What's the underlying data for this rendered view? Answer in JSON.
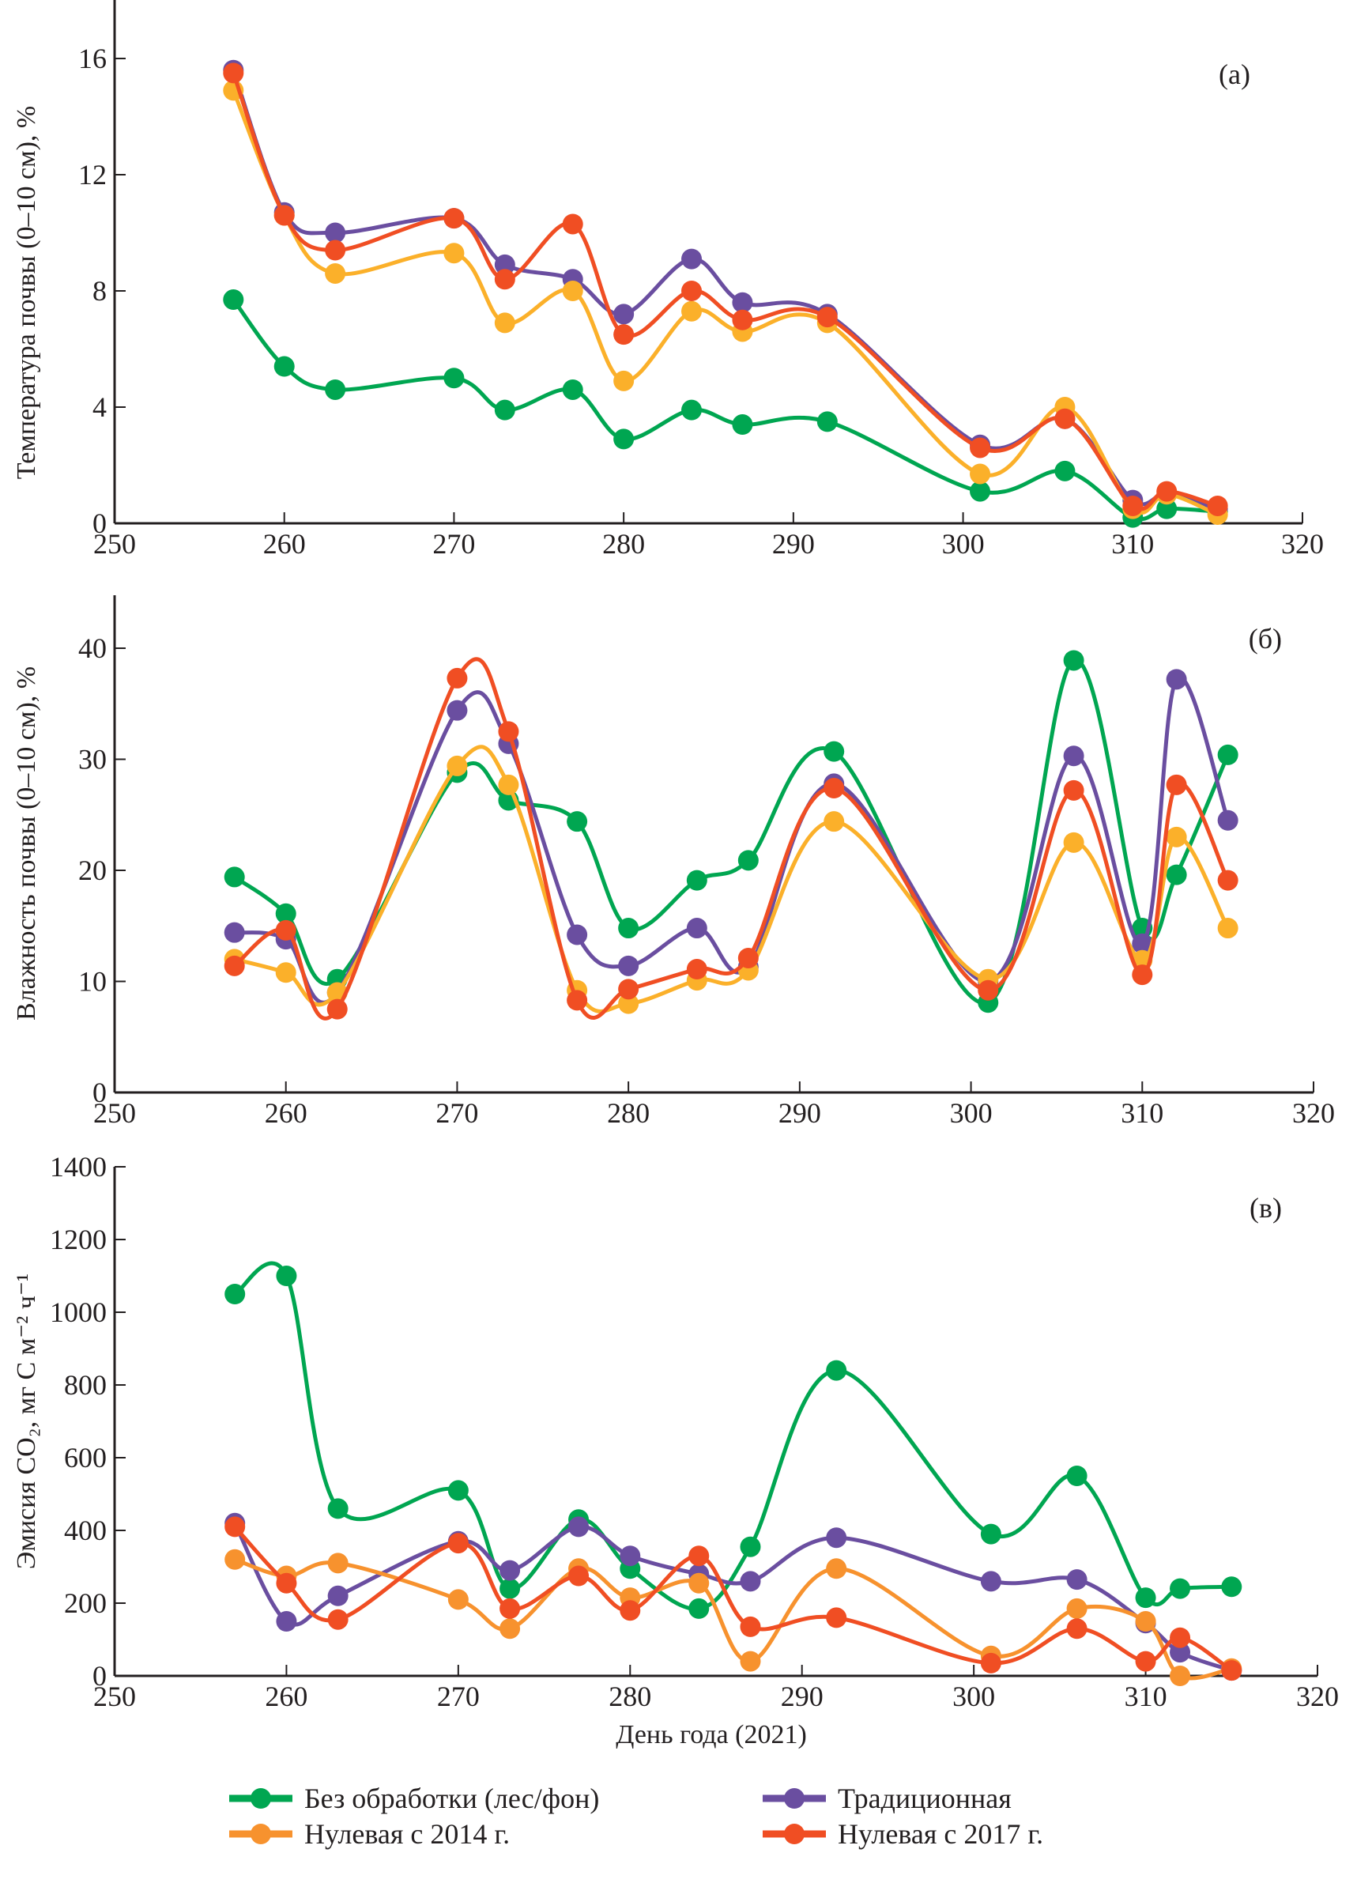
{
  "chart_data": [
    {
      "type": "line",
      "panel_label": "(а)",
      "title": "",
      "xlabel": "",
      "ylabel": "Температура почвы (0–10 см), %",
      "xlim": [
        250,
        320
      ],
      "ylim": [
        0,
        18
      ],
      "xticks": [
        250,
        260,
        270,
        280,
        290,
        300,
        310,
        320
      ],
      "yticks": [
        0,
        4,
        8,
        12,
        16
      ],
      "x": [
        257,
        260,
        263,
        270,
        273,
        277,
        280,
        284,
        287,
        292,
        301,
        306,
        310,
        312,
        315
      ],
      "series": [
        {
          "name": "Без обработки (лес/фон)",
          "color": "#00a651",
          "values": [
            7.7,
            5.4,
            4.6,
            5.0,
            3.9,
            4.6,
            2.9,
            3.9,
            3.4,
            3.5,
            1.1,
            1.8,
            0.2,
            0.5,
            0.4
          ]
        },
        {
          "name": "Традиционная",
          "color": "#6a4ea0",
          "values": [
            15.6,
            10.7,
            10.0,
            10.5,
            8.9,
            8.4,
            7.2,
            9.1,
            7.6,
            7.2,
            2.7,
            3.6,
            0.8,
            1.0,
            0.5
          ]
        },
        {
          "name": "Нулевая с 2014 г.",
          "color": "#fbb02a",
          "values": [
            14.9,
            10.6,
            8.6,
            9.3,
            6.9,
            8.0,
            4.9,
            7.3,
            6.6,
            6.9,
            1.7,
            4.0,
            0.5,
            1.0,
            0.3
          ]
        },
        {
          "name": "Нулевая с 2017 г.",
          "color": "#f04e23",
          "values": [
            15.5,
            10.6,
            9.4,
            10.5,
            8.4,
            10.3,
            6.5,
            8.0,
            7.0,
            7.1,
            2.6,
            3.6,
            0.6,
            1.1,
            0.6
          ]
        }
      ]
    },
    {
      "type": "line",
      "panel_label": "(б)",
      "title": "",
      "xlabel": "",
      "ylabel": "Влажность почвы (0–10 см), %",
      "xlim": [
        250,
        320
      ],
      "ylim": [
        0,
        45
      ],
      "xticks": [
        250,
        260,
        270,
        280,
        290,
        300,
        310,
        320
      ],
      "yticks": [
        0,
        10,
        20,
        30,
        40
      ],
      "x": [
        257,
        260,
        263,
        270,
        273,
        277,
        280,
        284,
        287,
        292,
        301,
        306,
        310,
        312,
        315
      ],
      "series": [
        {
          "name": "Без обработки (лес/фон)",
          "color": "#00a651",
          "values": [
            19.4,
            16.1,
            10.2,
            28.8,
            26.3,
            24.4,
            14.8,
            19.1,
            20.9,
            30.7,
            8.1,
            38.9,
            14.8,
            19.6,
            30.4
          ]
        },
        {
          "name": "Традиционная",
          "color": "#6a4ea0",
          "values": [
            14.4,
            13.8,
            9.0,
            34.4,
            31.4,
            14.2,
            11.4,
            14.8,
            11.3,
            27.8,
            10.0,
            30.3,
            13.4,
            37.2,
            24.5
          ]
        },
        {
          "name": "Нулевая с 2014 г.",
          "color": "#fbb02a",
          "values": [
            12.0,
            10.8,
            9.0,
            29.4,
            27.7,
            9.2,
            8.0,
            10.1,
            11.0,
            24.4,
            10.2,
            22.5,
            11.9,
            23.0,
            14.8
          ]
        },
        {
          "name": "Нулевая с 2017 г.",
          "color": "#f04e23",
          "values": [
            11.4,
            14.6,
            7.5,
            37.3,
            32.5,
            8.3,
            9.3,
            11.1,
            12.1,
            27.4,
            9.2,
            27.2,
            10.6,
            27.7,
            19.1
          ]
        }
      ]
    },
    {
      "type": "line",
      "panel_label": "(в)",
      "title": "",
      "xlabel": "День года (2021)",
      "ylabel": "Эмисия CO₂, мг C м⁻² ч⁻¹",
      "xlim": [
        250,
        320
      ],
      "ylim": [
        0,
        1400
      ],
      "xticks": [
        250,
        260,
        270,
        280,
        290,
        300,
        310,
        320
      ],
      "yticks": [
        0,
        200,
        400,
        600,
        800,
        1000,
        1200,
        1400
      ],
      "x": [
        257,
        260,
        263,
        270,
        273,
        277,
        280,
        284,
        287,
        292,
        301,
        306,
        310,
        312,
        315
      ],
      "series": [
        {
          "name": "Без обработки (лес/фон)",
          "color": "#00a651",
          "values": [
            1050,
            1100,
            460,
            510,
            240,
            430,
            295,
            185,
            355,
            840,
            390,
            550,
            215,
            240,
            245
          ]
        },
        {
          "name": "Традиционная",
          "color": "#6a4ea0",
          "values": [
            420,
            150,
            220,
            370,
            290,
            410,
            330,
            280,
            260,
            380,
            260,
            265,
            145,
            65,
            15
          ]
        },
        {
          "name": "Нулевая с 2014 г.",
          "color": "#f7922e",
          "values": [
            320,
            275,
            310,
            210,
            130,
            295,
            215,
            255,
            40,
            295,
            55,
            185,
            150,
            0,
            20
          ]
        },
        {
          "name": "Нулевая с 2017 г.",
          "color": "#f04e23",
          "values": [
            410,
            255,
            155,
            365,
            185,
            275,
            180,
            330,
            135,
            160,
            35,
            130,
            40,
            105,
            15
          ]
        }
      ]
    }
  ],
  "legend": {
    "placement": "bottom",
    "items": [
      {
        "label": "Без обработки (лес/фон)",
        "color": "#00a651"
      },
      {
        "label": "Традиционная",
        "color": "#6a4ea0"
      },
      {
        "label": "Нулевая с 2014 г.",
        "color": "#f7922e"
      },
      {
        "label": "Нулевая с 2017 г.",
        "color": "#f04e23"
      }
    ]
  }
}
